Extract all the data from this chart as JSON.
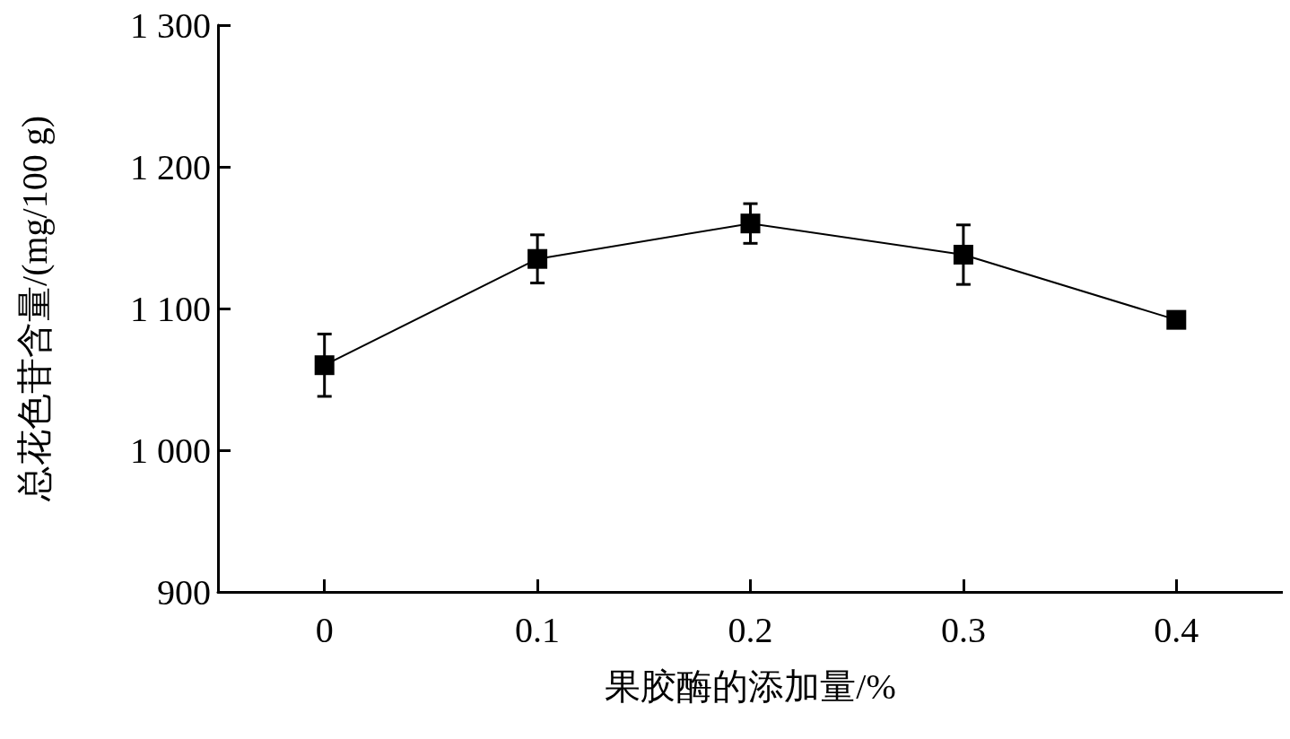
{
  "chart_data": {
    "type": "line",
    "xlabel": "果胶酶的添加量/%",
    "ylabel": "总花色苷含量/(mg/100 g)",
    "x": [
      0,
      0.1,
      0.2,
      0.3,
      0.4
    ],
    "series": [
      {
        "color": "#000000",
        "values": [
          1060,
          1135,
          1160,
          1138,
          1092
        ],
        "errors": [
          22,
          17,
          14,
          21,
          5
        ]
      }
    ],
    "xlim": [
      -0.05,
      0.45
    ],
    "xticks": [
      0,
      0.1,
      0.2,
      0.3,
      0.4
    ],
    "ylim": [
      900,
      1300
    ],
    "yticks": [
      {
        "value": 900,
        "label": "900"
      },
      {
        "value": 1000,
        "label": "1 000"
      },
      {
        "value": 1100,
        "label": "1 100"
      },
      {
        "value": 1200,
        "label": "1 200"
      },
      {
        "value": 1300,
        "label": "1 300"
      }
    ],
    "grid": false,
    "marker": "square",
    "line_style": "solid"
  }
}
